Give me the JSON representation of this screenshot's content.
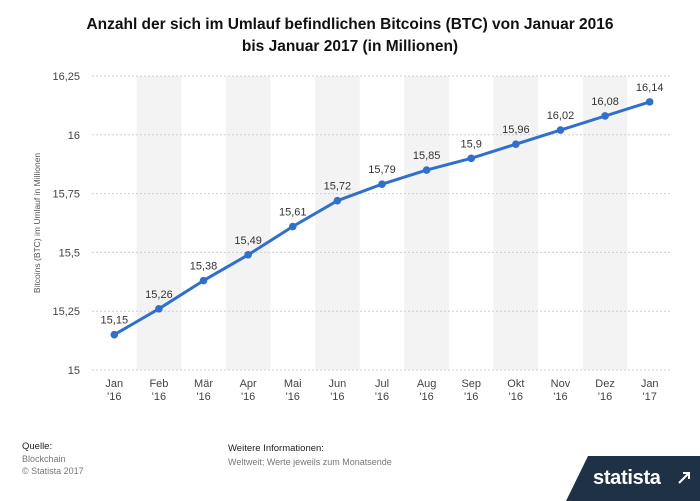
{
  "chart_data": {
    "type": "line",
    "title": [
      "Anzahl der sich im Umlauf befindlichen Bitcoins (BTC) von Januar 2016",
      "bis Januar 2017 (in Millionen)"
    ],
    "ylabel": "Bitcoins (BTC) im Umlauf in Millionen",
    "xlabel": "",
    "categories": [
      [
        "Jan",
        "'16"
      ],
      [
        "Feb",
        "'16"
      ],
      [
        "Mär",
        "'16"
      ],
      [
        "Apr",
        "'16"
      ],
      [
        "Mai",
        "'16"
      ],
      [
        "Jun",
        "'16"
      ],
      [
        "Jul",
        "'16"
      ],
      [
        "Aug",
        "'16"
      ],
      [
        "Sep",
        "'16"
      ],
      [
        "Okt",
        "'16"
      ],
      [
        "Nov",
        "'16"
      ],
      [
        "Dez",
        "'16"
      ],
      [
        "Jan",
        "'17"
      ]
    ],
    "values": [
      15.15,
      15.26,
      15.38,
      15.49,
      15.61,
      15.72,
      15.79,
      15.85,
      15.9,
      15.96,
      16.02,
      16.08,
      16.14
    ],
    "value_labels": [
      "15,15",
      "15,26",
      "15,38",
      "15,49",
      "15,61",
      "15,72",
      "15,79",
      "15,85",
      "15,9",
      "15,96",
      "16,02",
      "16,08",
      "16,14"
    ],
    "yticks": [
      15,
      15.25,
      15.5,
      15.75,
      16,
      16.25
    ],
    "ytick_labels": [
      "15",
      "15,25",
      "15,5",
      "15,75",
      "16",
      "16,25"
    ],
    "ylim": [
      15,
      16.25
    ],
    "grid": true,
    "alternating_bands": true,
    "line_color": "#2f6fcd",
    "band_color": "#f3f3f3",
    "grid_color": "#cfcfcf"
  },
  "footer": {
    "source_label": "Quelle:",
    "source_lines": [
      "Blockchain",
      "© Statista 2017"
    ],
    "info_label": "Weitere Informationen:",
    "info_text": "Weltweit; Werte jeweils zum Monatsende"
  },
  "brand": {
    "name": "statista",
    "color": "#1f3245"
  }
}
